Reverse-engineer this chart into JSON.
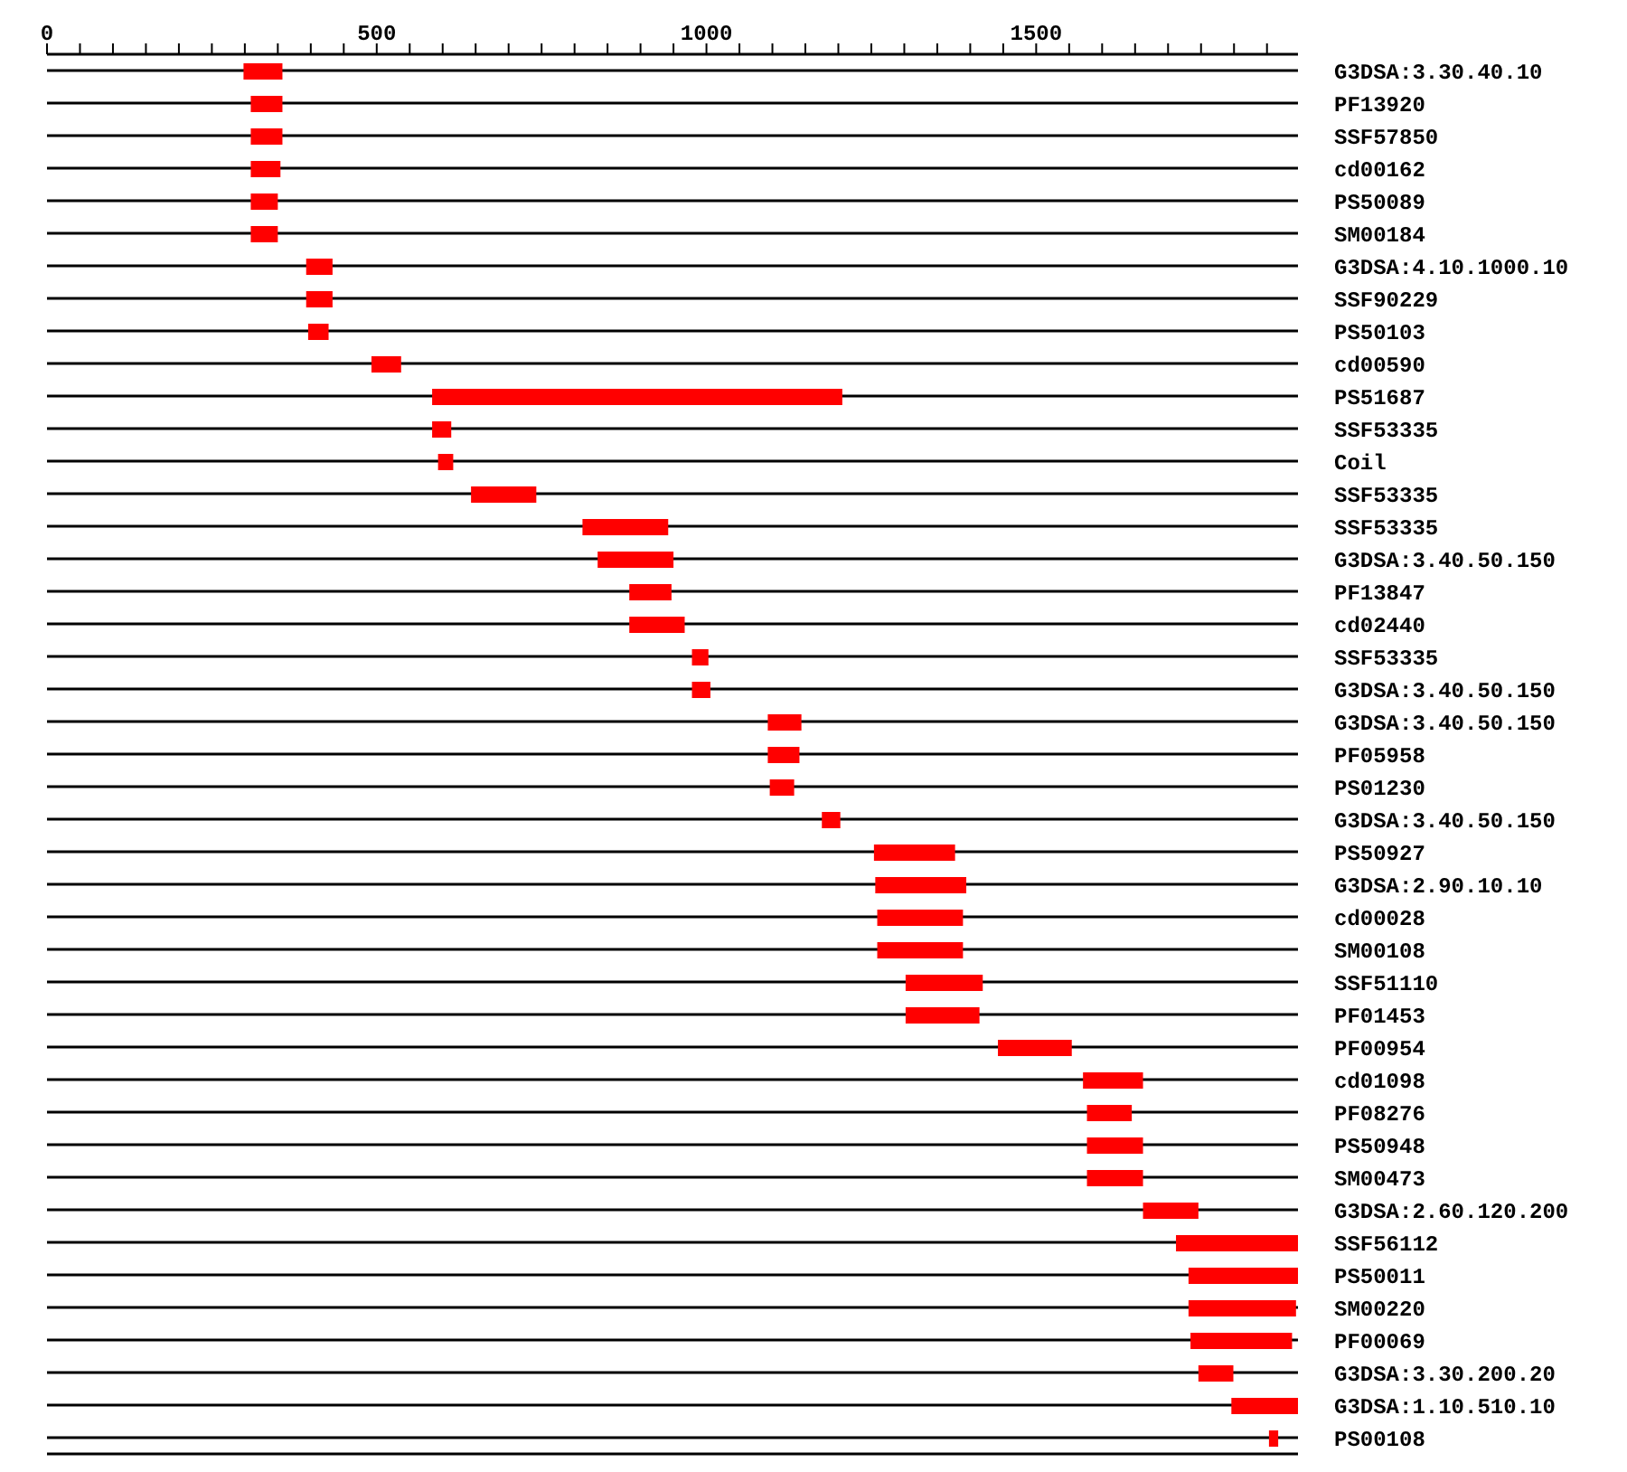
{
  "chart_data": {
    "type": "bar",
    "orientation": "horizontal",
    "color": "#ff0000",
    "grid": "y",
    "legend": false,
    "categories": [
      "G3DSA:3.30.40.10",
      "PF13920",
      "SSF57850",
      "cd00162",
      "PS50089",
      "SM00184",
      "G3DSA:4.10.1000.10",
      "SSF90229",
      "PS50103",
      "cd00590",
      "PS51687",
      "SSF53335",
      "Coil",
      "SSF53335",
      "SSF53335",
      "G3DSA:3.40.50.150",
      "PF13847",
      "cd02440",
      "SSF53335",
      "G3DSA:3.40.50.150",
      "G3DSA:3.40.50.150",
      "PF05958",
      "PS01230",
      "G3DSA:3.40.50.150",
      "PS50927",
      "G3DSA:2.90.10.10",
      "cd00028",
      "SM00108",
      "SSF51110",
      "PF01453",
      "PF00954",
      "cd01098",
      "PF08276",
      "PS50948",
      "SM00473",
      "G3DSA:2.60.120.200",
      "SSF56112",
      "PS50011",
      "SM00220",
      "PF00069",
      "G3DSA:3.30.200.20",
      "G3DSA:1.10.510.10",
      "PS00108"
    ],
    "base": [
      298,
      309,
      309,
      309,
      309,
      309,
      393,
      393,
      396,
      492,
      584,
      584,
      593,
      643,
      812,
      835,
      883,
      883,
      978,
      978,
      1093,
      1093,
      1096,
      1175,
      1254,
      1256,
      1259,
      1259,
      1302,
      1302,
      1442,
      1571,
      1577,
      1577,
      1577,
      1662,
      1712,
      1731,
      1731,
      1734,
      1746,
      1796,
      1853
    ],
    "values": [
      59,
      48,
      48,
      45,
      41,
      41,
      40,
      40,
      31,
      45,
      622,
      29,
      23,
      99,
      130,
      115,
      64,
      84,
      25,
      28,
      51,
      48,
      37,
      28,
      123,
      138,
      130,
      130,
      117,
      112,
      112,
      91,
      68,
      85,
      85,
      84,
      185,
      166,
      163,
      154,
      53,
      101,
      14
    ],
    "xlim": [
      0,
      1897
    ],
    "xticks": [
      0,
      {
        "value": 50,
        "label": null
      },
      {
        "value": 100,
        "label": null
      },
      {
        "value": 150,
        "label": null
      },
      {
        "value": 200,
        "label": null
      },
      {
        "value": 250,
        "label": null
      },
      {
        "value": 300,
        "label": null
      },
      {
        "value": 350,
        "label": null
      },
      {
        "value": 400,
        "label": null
      },
      {
        "value": 450,
        "label": null
      },
      500,
      {
        "value": 550,
        "label": null
      },
      {
        "value": 600,
        "label": null
      },
      {
        "value": 650,
        "label": null
      },
      {
        "value": 700,
        "label": null
      },
      {
        "value": 750,
        "label": null
      },
      {
        "value": 800,
        "label": null
      },
      {
        "value": 850,
        "label": null
      },
      {
        "value": 900,
        "label": null
      },
      {
        "value": 950,
        "label": null
      },
      1000,
      {
        "value": 1050,
        "label": null
      },
      {
        "value": 1100,
        "label": null
      },
      {
        "value": 1150,
        "label": null
      },
      {
        "value": 1200,
        "label": null
      },
      {
        "value": 1250,
        "label": null
      },
      {
        "value": 1300,
        "label": null
      },
      {
        "value": 1350,
        "label": null
      },
      {
        "value": 1400,
        "label": null
      },
      {
        "value": 1450,
        "label": null
      },
      1500,
      {
        "value": 1550,
        "label": null
      },
      {
        "value": 1600,
        "label": null
      },
      {
        "value": 1650,
        "label": null
      },
      {
        "value": 1700,
        "label": null
      },
      {
        "value": 1750,
        "label": null
      },
      {
        "value": 1800,
        "label": null
      },
      {
        "value": 1850,
        "label": null
      }
    ]
  }
}
